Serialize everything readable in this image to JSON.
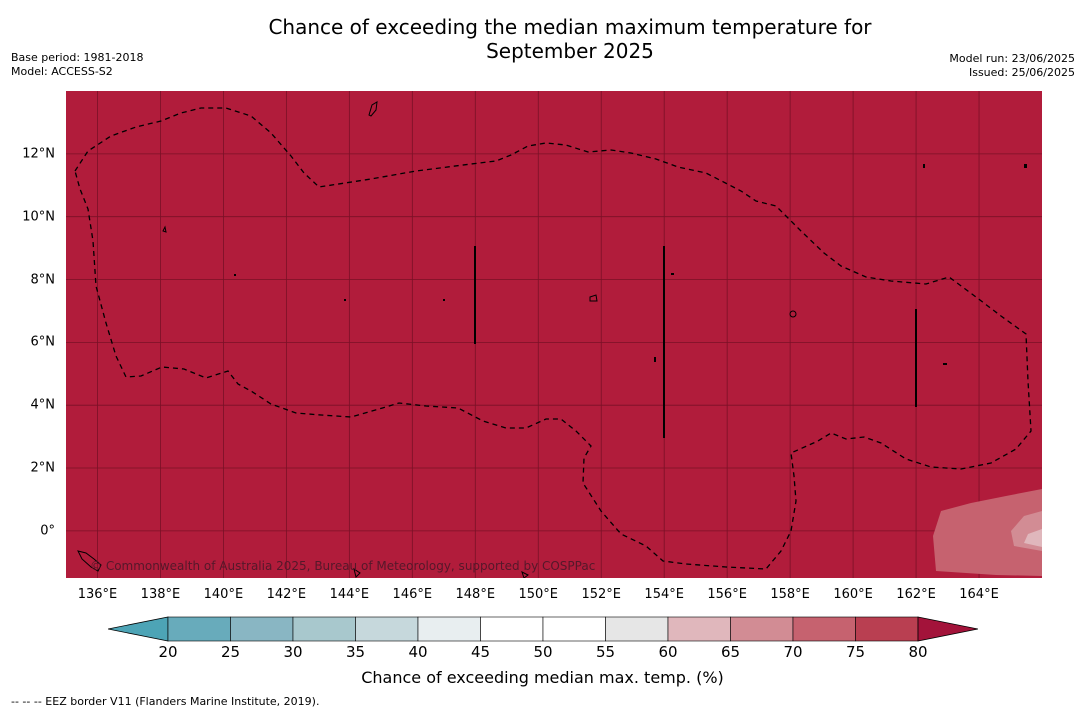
{
  "title": {
    "line1": "Chance of exceeding the median maximum temperature for",
    "line2": "September 2025"
  },
  "meta": {
    "base_period": "Base period: 1981-2018",
    "model": "Model: ACCESS-S2",
    "model_run": "Model run: 23/06/2025",
    "issued": "Issued: 25/06/2025"
  },
  "map": {
    "fill_color": "#b11c3b",
    "lat_range": [
      -1.5,
      14
    ],
    "lon_range": [
      135,
      166
    ],
    "lat_ticks": [
      {
        "value": 12,
        "label": "12°N"
      },
      {
        "value": 10,
        "label": "10°N"
      },
      {
        "value": 8,
        "label": "8°N"
      },
      {
        "value": 6,
        "label": "6°N"
      },
      {
        "value": 4,
        "label": "4°N"
      },
      {
        "value": 2,
        "label": "2°N"
      },
      {
        "value": 0,
        "label": "0°"
      }
    ],
    "lon_ticks": [
      {
        "value": 136,
        "label": "136°E"
      },
      {
        "value": 138,
        "label": "138°E"
      },
      {
        "value": 140,
        "label": "140°E"
      },
      {
        "value": 142,
        "label": "142°E"
      },
      {
        "value": 144,
        "label": "144°E"
      },
      {
        "value": 146,
        "label": "146°E"
      },
      {
        "value": 148,
        "label": "148°E"
      },
      {
        "value": 150,
        "label": "150°E"
      },
      {
        "value": 152,
        "label": "152°E"
      },
      {
        "value": 154,
        "label": "154°E"
      },
      {
        "value": 156,
        "label": "156°E"
      },
      {
        "value": 158,
        "label": "158°E"
      },
      {
        "value": 160,
        "label": "160°E"
      },
      {
        "value": 162,
        "label": "162°E"
      },
      {
        "value": 164,
        "label": "164°E"
      }
    ],
    "copyright": "© Commonwealth of Australia 2025, Bureau of Meteorology, supported by COSPPac"
  },
  "colorbar": {
    "label": "Chance of exceeding median max. temp. (%)",
    "ticks": [
      "20",
      "25",
      "30",
      "35",
      "40",
      "45",
      "50",
      "55",
      "60",
      "65",
      "70",
      "75",
      "80"
    ],
    "colors": [
      "#68abbb",
      "#89b6c3",
      "#a8c8cd",
      "#c6d8dc",
      "#e8eef0",
      "#ffffff",
      "#ffffff",
      "#e6e6e6",
      "#e0b7bc",
      "#d28c94",
      "#c6626f",
      "#b93f51"
    ],
    "under_color": "#4da4b6",
    "over_color": "#a3133a"
  },
  "footnote": "--  --  -- EEZ border V11 (Flanders Marine Institute, 2019)."
}
